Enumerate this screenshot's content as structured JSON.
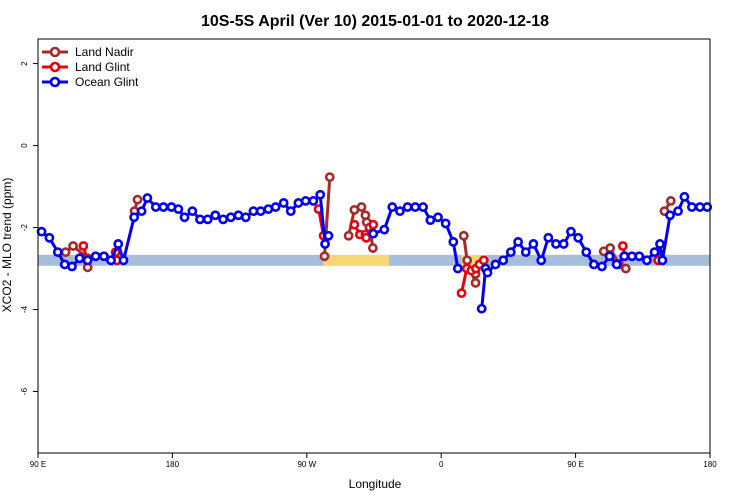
{
  "chart_data": {
    "type": "line",
    "title": "10S-5S April (Ver 10)   2015-01-01 to 2020-12-18",
    "xlabel": "Longitude",
    "ylabel": "XCO2 - MLO trend (ppm)",
    "xlim": [
      0,
      360
    ],
    "ylim": [
      -7.5,
      2.6
    ],
    "xticks": [
      {
        "value": 0,
        "label": "90 E"
      },
      {
        "value": 72,
        "label": "180"
      },
      {
        "value": 144,
        "label": "90 W"
      },
      {
        "value": 216,
        "label": "0"
      },
      {
        "value": 288,
        "label": "90 E"
      },
      {
        "value": 360,
        "label": "180"
      }
    ],
    "yticks": [
      {
        "value": 2,
        "label": "2"
      },
      {
        "value": 0,
        "label": "0"
      },
      {
        "value": -2,
        "label": "-2"
      },
      {
        "value": -4,
        "label": "-4"
      },
      {
        "value": -6,
        "label": "-6"
      }
    ],
    "legend_position": "top-left",
    "band": {
      "y": -2.8,
      "segments": [
        {
          "from": 0,
          "to": 153,
          "color": "#a6bedb"
        },
        {
          "from": 153,
          "to": 188,
          "color": "#f7d774"
        },
        {
          "from": 188,
          "to": 227,
          "color": "#a6bedb"
        },
        {
          "from": 227,
          "to": 240,
          "color": "#f7d774"
        },
        {
          "from": 240,
          "to": 360,
          "color": "#a6bedb"
        }
      ]
    },
    "series": [
      {
        "name": "Land Nadir",
        "color": "#a52a2a",
        "segments": [
          [
            [
              14.8,
              -2.6
            ],
            [
              18.8,
              -2.45
            ],
            [
              26.6,
              -2.75
            ],
            [
              26.6,
              -2.97
            ]
          ],
          [
            [
              51.7,
              -1.6
            ],
            [
              53.3,
              -1.32
            ]
          ],
          [
            [
              153.5,
              -2.7
            ],
            [
              156.3,
              -0.77
            ]
          ],
          [
            [
              166.4,
              -2.2
            ],
            [
              169.5,
              -1.57
            ],
            [
              173.3,
              -1.5
            ],
            [
              175.4,
              -1.7
            ],
            [
              176.1,
              -1.87
            ],
            [
              177.6,
              -2.0
            ],
            [
              179.4,
              -2.5
            ]
          ],
          [
            [
              228.1,
              -2.2
            ],
            [
              229.9,
              -2.8
            ],
            [
              234.4,
              -3.35
            ],
            [
              234.4,
              -3.13
            ]
          ],
          [
            [
              303.1,
              -2.58
            ],
            [
              306.5,
              -2.5
            ],
            [
              311.3,
              -2.9
            ],
            [
              314.9,
              -3.0
            ]
          ],
          [
            [
              335.6,
              -1.6
            ],
            [
              339.0,
              -1.35
            ]
          ]
        ]
      },
      {
        "name": "Land Glint",
        "color": "#e8000b",
        "segments": [
          [
            [
              24.3,
              -2.45
            ],
            [
              26.3,
              -2.8
            ]
          ],
          [
            [
              41.6,
              -2.6
            ],
            [
              42.3,
              -2.8
            ]
          ],
          [
            [
              150.3,
              -1.55
            ],
            [
              153.0,
              -2.2
            ]
          ],
          [
            [
              169.5,
              -1.93
            ],
            [
              172.4,
              -2.17
            ],
            [
              175.4,
              -2.17
            ],
            [
              175.8,
              -2.25
            ],
            [
              179.6,
              -1.93
            ]
          ],
          [
            [
              226.9,
              -3.6
            ],
            [
              229.7,
              -3.0
            ],
            [
              232.1,
              -3.05
            ],
            [
              234.6,
              -3.0
            ],
            [
              236.5,
              -2.9
            ],
            [
              238.8,
              -2.8
            ]
          ],
          [
            [
              313.3,
              -2.45
            ],
            [
              314.4,
              -2.7
            ]
          ],
          [
            [
              331.4,
              -2.6
            ],
            [
              332.2,
              -2.8
            ]
          ]
        ]
      },
      {
        "name": "Ocean Glint",
        "color": "#0000ee",
        "segments": [
          [
            [
              1.9,
              -2.1
            ],
            [
              6.1,
              -2.25
            ],
            [
              10.6,
              -2.6
            ],
            [
              14.3,
              -2.9
            ],
            [
              18.2,
              -2.95
            ],
            [
              22.3,
              -2.75
            ],
            [
              26.6,
              -2.8
            ],
            [
              30.9,
              -2.7
            ],
            [
              35.3,
              -2.7
            ],
            [
              39.1,
              -2.8
            ],
            [
              43.0,
              -2.4
            ],
            [
              45.8,
              -2.8
            ],
            [
              51.5,
              -1.75
            ],
            [
              55.5,
              -1.6
            ],
            [
              58.6,
              -1.28
            ],
            [
              63.1,
              -1.5
            ],
            [
              67.2,
              -1.5
            ],
            [
              71.5,
              -1.5
            ],
            [
              75.2,
              -1.55
            ],
            [
              78.5,
              -1.75
            ],
            [
              82.7,
              -1.6
            ],
            [
              86.8,
              -1.8
            ],
            [
              90.9,
              -1.8
            ],
            [
              95.0,
              -1.7
            ],
            [
              99.2,
              -1.8
            ],
            [
              103.3,
              -1.75
            ],
            [
              107.4,
              -1.7
            ],
            [
              111.3,
              -1.75
            ],
            [
              115.4,
              -1.6
            ],
            [
              119.3,
              -1.6
            ],
            [
              123.4,
              -1.55
            ],
            [
              127.3,
              -1.5
            ],
            [
              131.6,
              -1.4
            ],
            [
              135.4,
              -1.6
            ],
            [
              139.5,
              -1.4
            ],
            [
              143.4,
              -1.35
            ],
            [
              147.5,
              -1.35
            ],
            [
              151.2,
              -1.2
            ],
            [
              153.8,
              -2.4
            ],
            [
              155.6,
              -2.2
            ]
          ],
          [
            [
              179.6,
              -2.15
            ],
            [
              185.5,
              -2.05
            ],
            [
              189.8,
              -1.5
            ],
            [
              193.9,
              -1.6
            ],
            [
              198.0,
              -1.5
            ],
            [
              202.1,
              -1.5
            ],
            [
              206.3,
              -1.5
            ],
            [
              210.2,
              -1.82
            ],
            [
              214.3,
              -1.75
            ],
            [
              218.4,
              -1.9
            ],
            [
              222.5,
              -2.35
            ],
            [
              224.9,
              -3.0
            ]
          ],
          [
            [
              237.7,
              -3.98
            ],
            [
              239.8,
              -3.0
            ],
            [
              240.8,
              -3.1
            ],
            [
              245.1,
              -2.9
            ],
            [
              249.2,
              -2.8
            ],
            [
              253.3,
              -2.6
            ],
            [
              257.2,
              -2.35
            ],
            [
              261.3,
              -2.6
            ],
            [
              265.4,
              -2.4
            ],
            [
              269.6,
              -2.8
            ],
            [
              273.4,
              -2.25
            ],
            [
              277.5,
              -2.4
            ],
            [
              281.6,
              -2.4
            ],
            [
              285.5,
              -2.1
            ],
            [
              289.4,
              -2.25
            ],
            [
              293.7,
              -2.6
            ],
            [
              297.8,
              -2.9
            ],
            [
              302.1,
              -2.95
            ],
            [
              306.2,
              -2.7
            ],
            [
              310.0,
              -2.9
            ],
            [
              314.1,
              -2.7
            ],
            [
              318.2,
              -2.7
            ],
            [
              322.1,
              -2.7
            ],
            [
              326.2,
              -2.8
            ],
            [
              330.3,
              -2.6
            ],
            [
              333.2,
              -2.4
            ],
            [
              334.5,
              -2.8
            ],
            [
              338.6,
              -1.7
            ],
            [
              342.9,
              -1.6
            ],
            [
              346.3,
              -1.25
            ],
            [
              350.3,
              -1.5
            ],
            [
              354.6,
              -1.5
            ],
            [
              358.5,
              -1.5
            ]
          ]
        ]
      }
    ]
  }
}
